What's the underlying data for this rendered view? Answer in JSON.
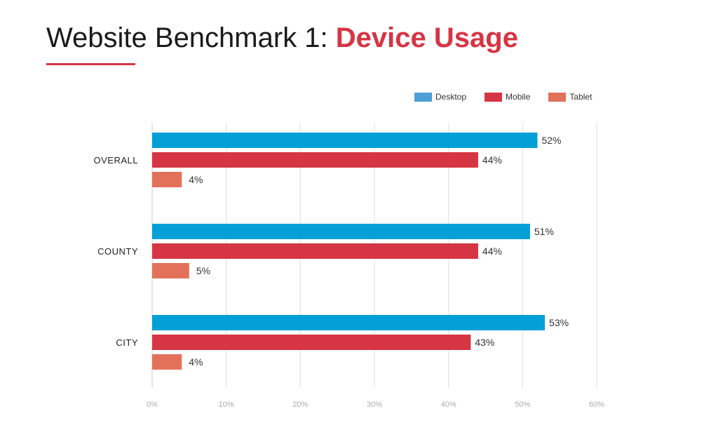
{
  "title": {
    "prefix": "Website Benchmark 1: ",
    "highlight": "Device Usage"
  },
  "colors": {
    "accent": "#d63544",
    "desktop": "#039fd7",
    "mobile": "#d63544",
    "tablet": "#e3715a",
    "legend_desktop": "#4d9fd6",
    "gridline": "#dddddd"
  },
  "legend": [
    {
      "label": "Desktop"
    },
    {
      "label": "Mobile"
    },
    {
      "label": "Tablet"
    }
  ],
  "chart_data": {
    "type": "bar",
    "orientation": "horizontal",
    "title": "Website Benchmark 1: Device Usage",
    "categories": [
      "OVERALL",
      "COUNTY",
      "CITY"
    ],
    "series": [
      {
        "name": "Desktop",
        "values": [
          52,
          51,
          53
        ],
        "labels": [
          "52%",
          "51%",
          "53%"
        ]
      },
      {
        "name": "Mobile",
        "values": [
          44,
          44,
          43
        ],
        "labels": [
          "44%",
          "44%",
          "43%"
        ]
      },
      {
        "name": "Tablet",
        "values": [
          4,
          5,
          4
        ],
        "labels": [
          "4%",
          "5%",
          "4%"
        ]
      }
    ],
    "xlim": [
      0,
      60
    ],
    "xticks": [
      "0%",
      "10%",
      "20%",
      "30%",
      "40%",
      "50%",
      "60%"
    ],
    "grid": true,
    "legend_position": "top-right"
  }
}
